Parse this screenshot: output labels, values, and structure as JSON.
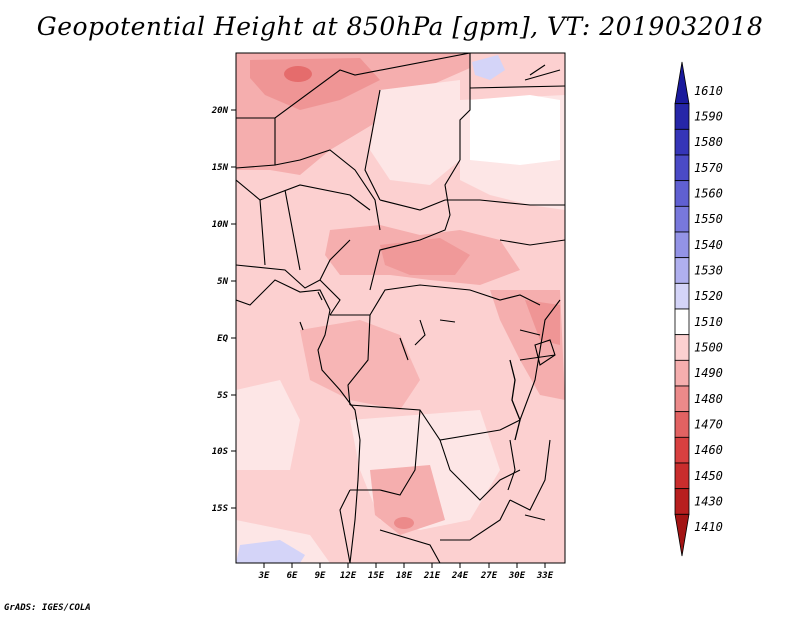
{
  "title": "Geopotential Height at 850hPa [gpm], VT: 2019032018",
  "credit": "GrADS: IGES/COLA",
  "map": {
    "variable": "Geopotential Height",
    "level": "850hPa",
    "units": "gpm",
    "valid_time": "2019032018",
    "lat_ticks": [
      "20N",
      "15N",
      "10N",
      "5N",
      "EQ",
      "5S",
      "10S",
      "15S"
    ],
    "lon_ticks": [
      "3E",
      "6E",
      "9E",
      "12E",
      "15E",
      "18E",
      "21E",
      "24E",
      "27E",
      "30E",
      "33E"
    ]
  },
  "colorbar": {
    "labels": [
      "1610",
      "1590",
      "1580",
      "1570",
      "1560",
      "1550",
      "1540",
      "1530",
      "1520",
      "1510",
      "1500",
      "1490",
      "1480",
      "1470",
      "1460",
      "1450",
      "1430",
      "1410"
    ],
    "colors": [
      "#1a1a9c",
      "#2626a8",
      "#3535b8",
      "#4a4ac6",
      "#6060d2",
      "#7878dc",
      "#9393e6",
      "#b0b0ef",
      "#d4d4f8",
      "#ffffff",
      "#fcd0d0",
      "#f5aeae",
      "#ec8a8a",
      "#e26262",
      "#d84040",
      "#c92d2d",
      "#b81f1f",
      "#a31414"
    ]
  },
  "colors": {
    "low_heights": "#f5aeae",
    "mid_heights": "#fcd0d0",
    "pale_heights": "#fde6e6",
    "high_heights": "#d4d4f8"
  }
}
